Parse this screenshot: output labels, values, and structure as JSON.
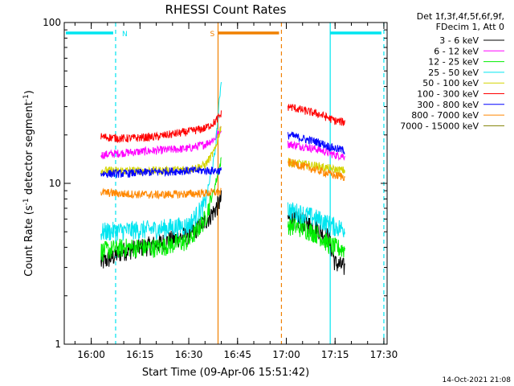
{
  "chart_data": {
    "type": "line",
    "title": "RHESSI Count Rates",
    "xlabel": "Start Time (09-Apr-06 15:51:42)",
    "ylabel_prefix": "Count Rate (s",
    "ylabel_sup1": "-1",
    "ylabel_mid": " detector segment",
    "ylabel_sup2": "-1",
    "ylabel_suffix": ")",
    "y_scale": "log",
    "ylim": [
      1,
      100
    ],
    "y_ticks": [
      "1",
      "10",
      "100"
    ],
    "x_range": [
      "15:51:42",
      "17:31:00"
    ],
    "x_ticks": [
      "16:00",
      "16:15",
      "16:30",
      "16:45",
      "17:00",
      "17:15",
      "17:30"
    ],
    "detector_info": [
      "Det 1f,3f,4f,5f,6f,9f,",
      "FDecim 1, Att 0"
    ],
    "timestamp": "14-Oct-2021 21:08",
    "intervals": [
      {
        "label": "N",
        "start": "15:51:42",
        "end": "16:07:30",
        "color": "#00e5f0"
      },
      {
        "label": "S",
        "start": "16:39:00",
        "end": "16:58:30",
        "color": "#f08000"
      },
      {
        "label": "",
        "start": "17:13:30",
        "end": "17:30:00",
        "color": "#00e5f0"
      }
    ],
    "data_segments": [
      {
        "start": "16:03:00",
        "end": "16:40:00"
      },
      {
        "start": "17:00:30",
        "end": "17:18:00"
      }
    ],
    "series": [
      {
        "name": "3 - 6 keV",
        "color": "#000000",
        "x": [
          "16:03",
          "16:10",
          "16:20",
          "16:30",
          "16:35",
          "16:38",
          "16:40",
          "17:01",
          "17:05",
          "17:10",
          "17:13",
          "17:15",
          "17:18"
        ],
        "y": [
          3.2,
          3.8,
          4.2,
          4.8,
          5.8,
          6.8,
          8.0,
          6.0,
          5.8,
          5.2,
          4.6,
          3.2,
          3.0
        ]
      },
      {
        "name": "6 - 12 keV",
        "color": "#ff00ff",
        "x": [
          "16:03",
          "16:10",
          "16:20",
          "16:30",
          "16:35",
          "16:38",
          "16:40",
          "17:01",
          "17:05",
          "17:10",
          "17:13",
          "17:15",
          "17:18"
        ],
        "y": [
          15.0,
          15.5,
          16.0,
          16.5,
          17.5,
          19.0,
          22.0,
          17.5,
          17.0,
          16.2,
          15.5,
          15.0,
          14.8
        ]
      },
      {
        "name": "12 - 25 keV",
        "color": "#00ee00",
        "x": [
          "16:03",
          "16:10",
          "16:20",
          "16:30",
          "16:35",
          "16:38",
          "16:40",
          "17:01",
          "17:05",
          "17:10",
          "17:13",
          "17:15",
          "17:18"
        ],
        "y": [
          3.8,
          4.0,
          4.0,
          4.4,
          6.0,
          9.5,
          14.0,
          5.5,
          5.3,
          4.8,
          4.2,
          4.0,
          3.9
        ]
      },
      {
        "name": "25 - 50 keV",
        "color": "#00e5f0",
        "x": [
          "16:03",
          "16:10",
          "16:20",
          "16:30",
          "16:35",
          "16:38",
          "16:40",
          "17:01",
          "17:05",
          "17:10",
          "17:13",
          "17:15",
          "17:18"
        ],
        "y": [
          5.0,
          5.1,
          5.2,
          5.5,
          7.5,
          15.0,
          45.0,
          6.8,
          6.5,
          6.0,
          5.6,
          5.4,
          5.2
        ]
      },
      {
        "name": "50 - 100 keV",
        "color": "#d4d400",
        "x": [
          "16:03",
          "16:10",
          "16:20",
          "16:30",
          "16:35",
          "16:38",
          "16:40",
          "17:01",
          "17:05",
          "17:10",
          "17:13",
          "17:15",
          "17:18"
        ],
        "y": [
          12.0,
          12.0,
          12.0,
          12.2,
          13.0,
          16.0,
          23.0,
          13.5,
          13.2,
          12.8,
          12.4,
          12.2,
          12.0
        ]
      },
      {
        "name": "100 - 300 keV",
        "color": "#ff0000",
        "x": [
          "16:03",
          "16:10",
          "16:20",
          "16:30",
          "16:35",
          "16:38",
          "16:40",
          "17:01",
          "17:05",
          "17:10",
          "17:13",
          "17:15",
          "17:18"
        ],
        "y": [
          19.5,
          19.0,
          19.5,
          21.0,
          22.0,
          24.0,
          27.0,
          30.0,
          28.5,
          27.0,
          25.5,
          24.5,
          24.0
        ]
      },
      {
        "name": "300 - 800 keV",
        "color": "#0000ff",
        "x": [
          "16:03",
          "16:10",
          "16:20",
          "16:30",
          "16:35",
          "16:38",
          "16:40",
          "17:01",
          "17:05",
          "17:10",
          "17:13",
          "17:15",
          "17:18"
        ],
        "y": [
          11.5,
          11.5,
          11.8,
          12.0,
          12.0,
          12.0,
          12.0,
          20.0,
          19.0,
          18.0,
          17.0,
          16.5,
          16.0
        ]
      },
      {
        "name": "800 - 7000 keV",
        "color": "#ff8800",
        "x": [
          "16:03",
          "16:10",
          "16:20",
          "16:30",
          "16:35",
          "16:38",
          "16:40",
          "17:01",
          "17:05",
          "17:10",
          "17:13",
          "17:15",
          "17:18"
        ],
        "y": [
          8.8,
          8.6,
          8.5,
          8.6,
          8.7,
          8.8,
          8.8,
          13.5,
          12.8,
          12.0,
          11.5,
          11.2,
          11.0
        ]
      },
      {
        "name": "7000 - 15000 keV",
        "color": "#808000",
        "x": [],
        "y": []
      }
    ]
  }
}
